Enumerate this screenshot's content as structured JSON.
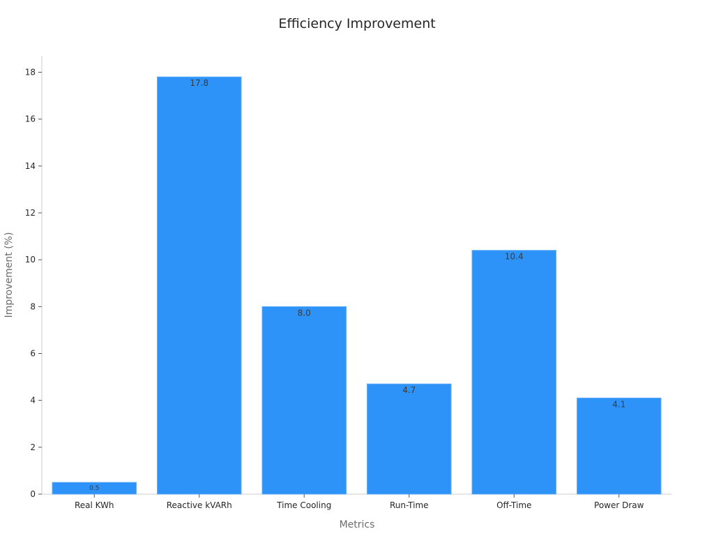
{
  "chart_data": {
    "type": "bar",
    "title": "Efficiency Improvement",
    "xlabel": "Metrics",
    "ylabel": "Improvement (%)",
    "categories": [
      "Real KWh",
      "Reactive kVARh",
      "Time Cooling",
      "Run-Time",
      "Off-Time",
      "Power Draw"
    ],
    "values": [
      0.5,
      17.8,
      8.0,
      4.7,
      10.4,
      4.1
    ],
    "data_labels": [
      "0.5",
      "17.8",
      "8.0",
      "4.7",
      "10.4",
      "4.1"
    ],
    "yticks": [
      0,
      2,
      4,
      6,
      8,
      10,
      12,
      14,
      16,
      18
    ],
    "ytick_labels": [
      "0",
      "2",
      "4",
      "6",
      "8",
      "10",
      "12",
      "14",
      "16",
      "18"
    ],
    "ylim": [
      0,
      18.7
    ],
    "grid": false,
    "legend": "none",
    "colors": {
      "bar": "#2e93f9",
      "bar_edge": "#5aa9f7",
      "axis": "#cccccc",
      "text": "#262626",
      "axis_label": "#6b6b6b"
    }
  }
}
